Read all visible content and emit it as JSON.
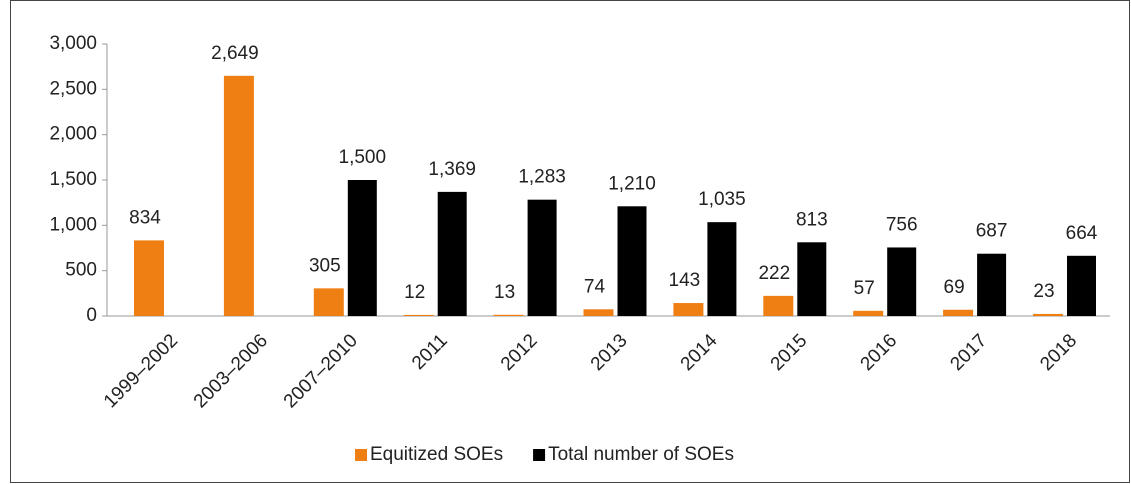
{
  "chart_data": {
    "type": "bar",
    "categories": [
      "1999–2002",
      "2003–2006",
      "2007–2010",
      "2011",
      "2012",
      "2013",
      "2014",
      "2015",
      "2016",
      "2017",
      "2018"
    ],
    "series": [
      {
        "name": "Equitized SOEs",
        "color": "#f07f13",
        "values": [
          834,
          2649,
          305,
          12,
          13,
          74,
          143,
          222,
          57,
          69,
          23
        ],
        "value_labels": [
          "834",
          "2,649",
          "305",
          "12",
          "13",
          "74",
          "143",
          "222",
          "57",
          "69",
          "23"
        ]
      },
      {
        "name": "Total number of SOEs",
        "color": "#000000",
        "values": [
          null,
          null,
          1500,
          1369,
          1283,
          1210,
          1035,
          813,
          756,
          687,
          664
        ],
        "value_labels": [
          null,
          null,
          "1,500",
          "1,369",
          "1,283",
          "1,210",
          "1,035",
          "813",
          "756",
          "687",
          "664"
        ]
      }
    ],
    "ylim": [
      0,
      3000
    ],
    "yticks": [
      0,
      500,
      {
        "value": 1000,
        "label": "1,000"
      },
      {
        "value": 1500,
        "label": "1,500"
      },
      {
        "value": 2000,
        "label": "2,000"
      },
      {
        "value": 2500,
        "label": "2,500"
      },
      {
        "value": 3000,
        "label": "3,000"
      }
    ],
    "grid": false,
    "legend": "bottom"
  }
}
